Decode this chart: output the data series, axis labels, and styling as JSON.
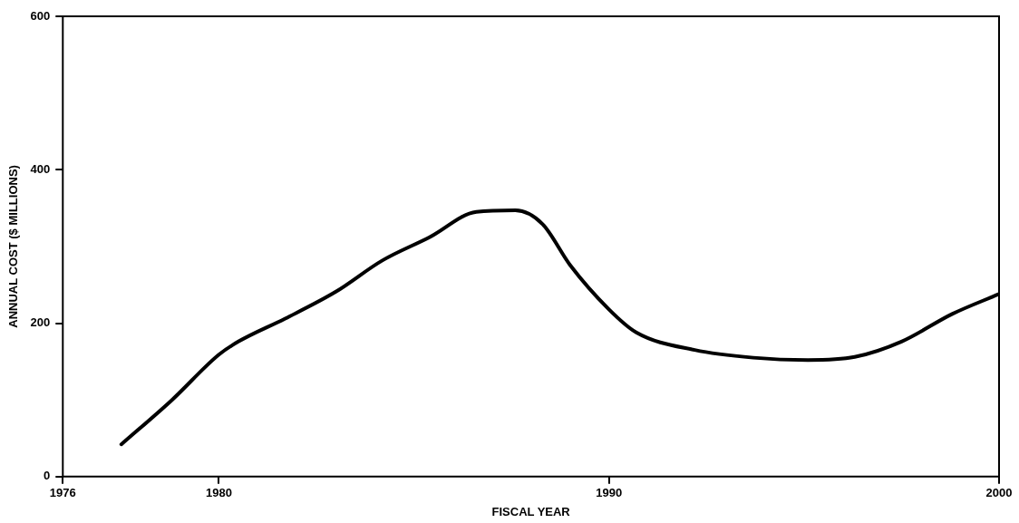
{
  "chart_data": {
    "type": "line",
    "xlabel": "FISCAL YEAR",
    "ylabel": "ANNUAL COST ($ MILLIONS)",
    "x": [
      1977.5,
      1978.8,
      1980,
      1980.5,
      1981.7,
      1983.0,
      1984.2,
      1985.4,
      1986.6,
      1987.6,
      1988.3,
      1989.0,
      1990.0,
      1990.7,
      1992.2,
      1993.7,
      1995.1,
      1996.3,
      1997.5,
      1998.8,
      2000
    ],
    "series": [
      {
        "color": "#000000",
        "values": [
          42,
          100,
          159,
          176,
          206,
          241,
          282,
          312,
          345,
          347,
          329,
          276,
          218,
          188,
          165,
          155,
          152,
          156,
          176,
          212,
          238
        ]
      }
    ],
    "xlim": [
      1976,
      2000
    ],
    "xticks": [
      1976,
      1980,
      1990,
      2000
    ],
    "ylim": [
      0,
      600
    ],
    "yticks": [
      0,
      200,
      400,
      600
    ],
    "grid": false,
    "legend": false,
    "marker": "none",
    "line_style": "solid"
  }
}
